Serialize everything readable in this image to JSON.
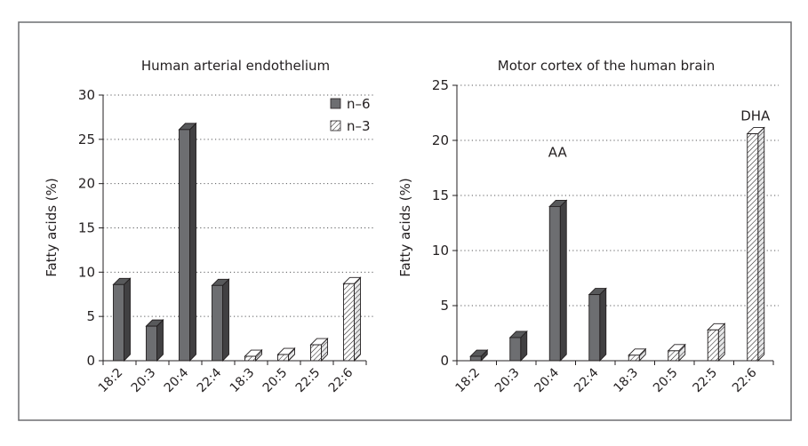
{
  "colors": {
    "n6_fill": "#6d6e71",
    "n6_top": "#58595b",
    "n6_side": "#414042",
    "outline": "#231f20",
    "frame": "#6d6e71",
    "hatch": "#231f20"
  },
  "chart_data": [
    {
      "type": "bar",
      "title": "Human arterial endothelium",
      "ylabel": "Fatty acids (%)",
      "ylim": [
        0,
        30
      ],
      "yticks": [
        "0",
        "5",
        "10",
        "15",
        "20",
        "25",
        "30"
      ],
      "grid": true,
      "legend": {
        "placement": "top-right",
        "entries": [
          {
            "label": "n–6",
            "style": "solid"
          },
          {
            "label": "n–3",
            "style": "hatched"
          }
        ]
      },
      "categories": [
        "18:2",
        "20:3",
        "20:4",
        "22:4",
        "18:3",
        "20:5",
        "22:5",
        "22:6"
      ],
      "values": [
        8.6,
        3.9,
        26.1,
        8.5,
        0.5,
        0.7,
        1.8,
        8.7
      ],
      "series_type": [
        "n-6",
        "n-6",
        "n-6",
        "n-6",
        "n-3",
        "n-3",
        "n-3",
        "n-3"
      ],
      "annotations": []
    },
    {
      "type": "bar",
      "title": "Motor cortex of the human brain",
      "ylabel": "Fatty acids (%)",
      "ylim": [
        0,
        25
      ],
      "yticks": [
        "0",
        "5",
        "10",
        "15",
        "20",
        "25"
      ],
      "grid": true,
      "categories": [
        "18:2",
        "20:3",
        "20:4",
        "22:4",
        "18:3",
        "20:5",
        "22:5",
        "22:6"
      ],
      "values": [
        0.4,
        2.1,
        14.0,
        6.0,
        0.5,
        0.9,
        2.8,
        20.6
      ],
      "series_type": [
        "n-6",
        "n-6",
        "n-6",
        "n-6",
        "n-3",
        "n-3",
        "n-3",
        "n-3"
      ],
      "annotations": [
        {
          "text": "AA",
          "category": "20:4",
          "value": 18.5
        },
        {
          "text": "DHA",
          "category": "22:6",
          "value": 21.8
        }
      ]
    }
  ]
}
